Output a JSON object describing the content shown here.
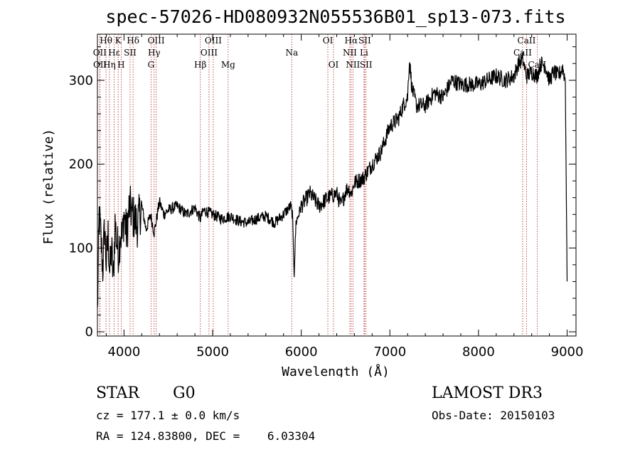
{
  "chart_data": {
    "type": "line",
    "title": "spec-57026-HD080932N055536B01_sp13-073.fits",
    "xlabel": "Wavelength (Å)",
    "ylabel": "Flux (relative)",
    "xlim": [
      3700,
      9100
    ],
    "ylim": [
      -5,
      355
    ],
    "xticks": [
      4000,
      5000,
      6000,
      7000,
      8000,
      9000
    ],
    "xtick_labels": [
      "4000",
      "5000",
      "6000",
      "7000",
      "8000",
      "9000"
    ],
    "yticks": [
      0,
      100,
      200,
      300
    ],
    "ytick_labels": [
      "0",
      "100",
      "200",
      "300"
    ],
    "grid": false,
    "series": [
      {
        "name": "spectrum",
        "x": [
          3700,
          3720,
          3740,
          3760,
          3780,
          3800,
          3820,
          3840,
          3860,
          3880,
          3900,
          3920,
          3940,
          3960,
          3980,
          4000,
          4030,
          4060,
          4100,
          4150,
          4200,
          4250,
          4300,
          4340,
          4400,
          4450,
          4500,
          4600,
          4700,
          4800,
          4860,
          4900,
          5000,
          5100,
          5200,
          5300,
          5400,
          5500,
          5600,
          5700,
          5800,
          5880,
          5900,
          5920,
          5940,
          6000,
          6100,
          6200,
          6300,
          6400,
          6450,
          6500,
          6530,
          6563,
          6600,
          6700,
          6800,
          6900,
          7000,
          7100,
          7150,
          7200,
          7220,
          7250,
          7300,
          7400,
          7500,
          7600,
          7700,
          7800,
          7900,
          8000,
          8100,
          8200,
          8300,
          8400,
          8450,
          8498,
          8542,
          8600,
          8662,
          8700,
          8750,
          8800,
          8850,
          8900,
          8950,
          8980,
          9000
        ],
        "values": [
          20,
          140,
          110,
          75,
          125,
          80,
          115,
          70,
          100,
          60,
          130,
          105,
          95,
          120,
          110,
          140,
          115,
          150,
          138,
          128,
          150,
          122,
          140,
          118,
          155,
          140,
          145,
          150,
          140,
          148,
          135,
          145,
          140,
          135,
          138,
          132,
          130,
          135,
          138,
          130,
          140,
          150,
          140,
          70,
          130,
          150,
          165,
          150,
          160,
          165,
          150,
          168,
          172,
          165,
          178,
          183,
          200,
          215,
          245,
          255,
          270,
          280,
          325,
          290,
          270,
          270,
          285,
          280,
          300,
          295,
          295,
          295,
          300,
          305,
          300,
          305,
          320,
          325,
          305,
          310,
          305,
          320,
          318,
          300,
          310,
          305,
          315,
          300,
          60
        ]
      }
    ],
    "lines": [
      {
        "label": "Hθ",
        "x": 3797,
        "row": 0
      },
      {
        "label": "OII",
        "x": 3727,
        "row": 1
      },
      {
        "label": "Hε",
        "x": 3889,
        "row": 1
      },
      {
        "label": "OII",
        "x": 3729,
        "row": 2
      },
      {
        "label": "Hη",
        "x": 3835,
        "row": 2
      },
      {
        "label": "K",
        "x": 3934,
        "row": 0
      },
      {
        "label": "SII",
        "x": 4069,
        "row": 1
      },
      {
        "label": "H",
        "x": 3968,
        "row": 2
      },
      {
        "label": "Hδ",
        "x": 4102,
        "row": 0
      },
      {
        "label": "OIII",
        "x": 4363,
        "row": 0
      },
      {
        "label": "Hγ",
        "x": 4340,
        "row": 1
      },
      {
        "label": "G",
        "x": 4305,
        "row": 2
      },
      {
        "label": "OIII",
        "x": 5007,
        "row": 0
      },
      {
        "label": "OIII",
        "x": 4959,
        "row": 1
      },
      {
        "label": "Hβ",
        "x": 4861,
        "row": 2
      },
      {
        "label": "Mg",
        "x": 5175,
        "row": 2
      },
      {
        "label": "Na",
        "x": 5893,
        "row": 1
      },
      {
        "label": "OI",
        "x": 6300,
        "row": 0
      },
      {
        "label": "OI",
        "x": 6364,
        "row": 2
      },
      {
        "label": "Hα",
        "x": 6563,
        "row": 0
      },
      {
        "label": "SII",
        "x": 6716,
        "row": 0
      },
      {
        "label": "NII",
        "x": 6548,
        "row": 1
      },
      {
        "label": "Li",
        "x": 6708,
        "row": 1
      },
      {
        "label": "NII",
        "x": 6583,
        "row": 2
      },
      {
        "label": "SII",
        "x": 6731,
        "row": 2
      },
      {
        "label": "CaII",
        "x": 8542,
        "row": 0
      },
      {
        "label": "CaII",
        "x": 8498,
        "row": 1
      },
      {
        "label": "CaII",
        "x": 8662,
        "row": 2
      }
    ]
  },
  "info": {
    "class": "STAR",
    "subclass": "G0",
    "survey": "LAMOST DR3",
    "cz": "cz = 177.1 ± 0.0 km/s",
    "obs_date": "Obs-Date: 20150103",
    "radec": "RA = 124.83800, DEC =    6.03304"
  }
}
